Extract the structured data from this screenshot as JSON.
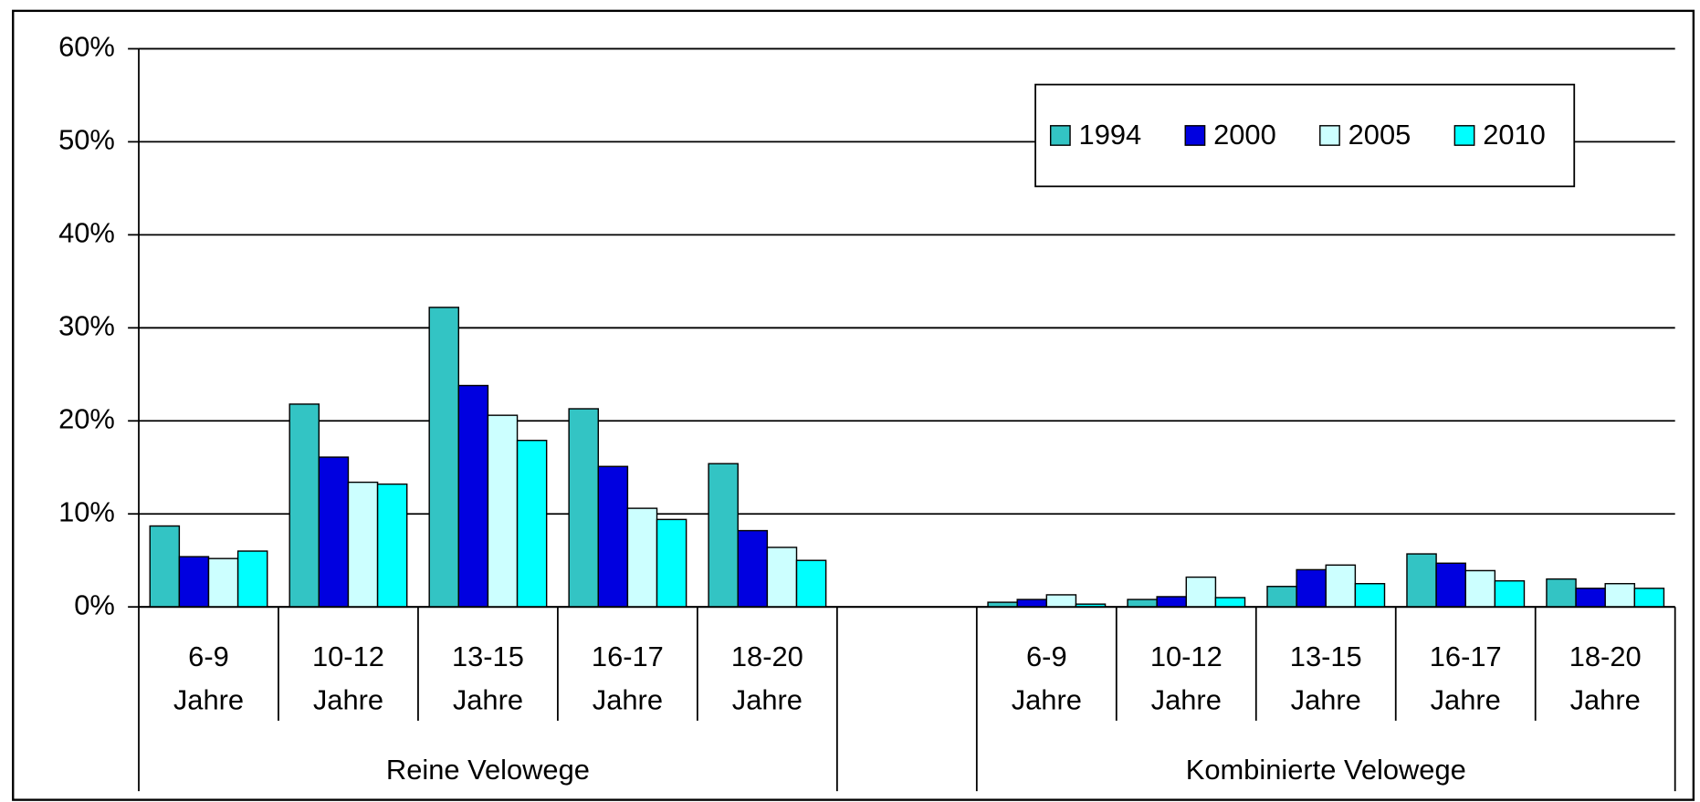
{
  "chart_data": {
    "type": "bar",
    "categories": [
      "6-9 Jahre",
      "10-12 Jahre",
      "13-15 Jahre",
      "16-17 Jahre",
      "18-20 Jahre",
      null,
      "6-9 Jahre",
      "10-12 Jahre",
      "13-15 Jahre",
      "16-17 Jahre",
      "18-20 Jahre"
    ],
    "group_labels": [
      "Reine Velowege",
      "Kombinierte Velowege"
    ],
    "series": [
      {
        "name": "1994",
        "color": "#33c4c4",
        "values": [
          8.7,
          21.8,
          32.2,
          21.3,
          15.4,
          null,
          0.5,
          0.8,
          2.2,
          5.7,
          3.0
        ]
      },
      {
        "name": "2000",
        "color": "#0000e0",
        "values": [
          5.4,
          16.1,
          23.8,
          15.1,
          8.2,
          null,
          0.8,
          1.1,
          4.0,
          4.7,
          2.0
        ]
      },
      {
        "name": "2005",
        "color": "#ccffff",
        "values": [
          5.2,
          13.4,
          20.6,
          10.6,
          6.4,
          null,
          1.3,
          3.2,
          4.5,
          3.9,
          2.5
        ]
      },
      {
        "name": "2010",
        "color": "#00ffff",
        "values": [
          6.0,
          13.2,
          17.9,
          9.4,
          5.0,
          null,
          0.3,
          1.0,
          2.5,
          2.8,
          2.0
        ]
      }
    ],
    "ylim": [
      0,
      60
    ],
    "yticks": [
      {
        "value": 0,
        "label": "0%"
      },
      {
        "value": 10,
        "label": "10%"
      },
      {
        "value": 20,
        "label": "20%"
      },
      {
        "value": 30,
        "label": "30%"
      },
      {
        "value": 40,
        "label": "40%"
      },
      {
        "value": 50,
        "label": "50%"
      },
      {
        "value": 60,
        "label": "60%"
      }
    ],
    "grid": true,
    "legend": "top-right"
  }
}
